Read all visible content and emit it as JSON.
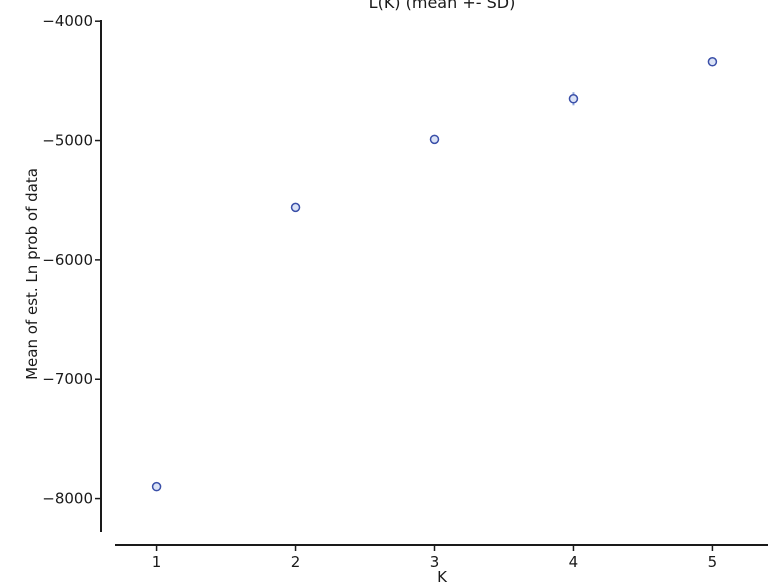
{
  "chart_data": {
    "type": "scatter",
    "title": "L(K) (mean +- SD)",
    "xlabel": "K",
    "ylabel": "Mean of est. Ln prob of data",
    "x": [
      1,
      2,
      3,
      4,
      5
    ],
    "y": [
      -7900,
      -5560,
      -4990,
      -4650,
      -4340
    ],
    "sd": [
      15,
      15,
      20,
      55,
      25
    ],
    "xlim": [
      0.6,
      5.4
    ],
    "ylim": [
      -8280,
      -3990
    ],
    "x_ticks": [
      "1",
      "2",
      "3",
      "4",
      "5"
    ],
    "y_ticks": [
      "−8000",
      "−7000",
      "−6000",
      "−5000",
      "−4000"
    ],
    "y_tick_values": [
      -8000,
      -7000,
      -6000,
      -5000,
      -4000
    ],
    "grid": false,
    "colors": {
      "marker": "#3a4fa8",
      "errorbar": "#8fa6dc",
      "axis": "#1a1a1a"
    }
  }
}
